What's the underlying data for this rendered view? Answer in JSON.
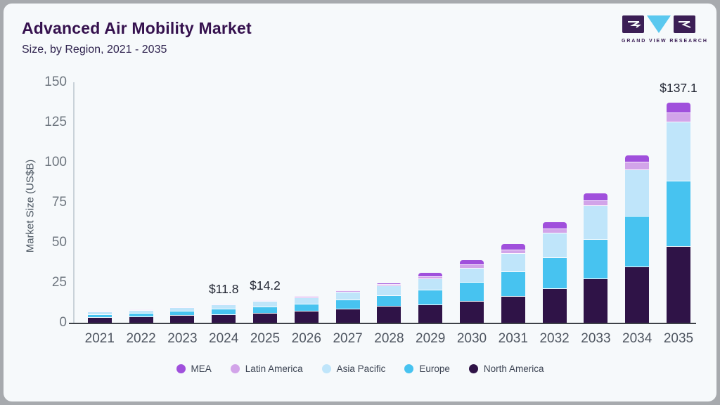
{
  "header": {
    "title": "Advanced Air Mobility Market",
    "subtitle": "Size, by Region, 2021 - 2035"
  },
  "logo": {
    "brand": "GRAND VIEW RESEARCH",
    "brand_dark_color": "#3b1e55",
    "brand_blue_color": "#5ac8ef"
  },
  "chart_data": {
    "type": "bar",
    "stacked": true,
    "title": "Advanced Air Mobility Market",
    "subtitle": "Size, by Region, 2021 - 2035",
    "ylabel": "Market Size (US$B)",
    "ylim": [
      0,
      150
    ],
    "yticks": [
      0,
      25,
      50,
      75,
      100,
      125,
      150
    ],
    "grid": false,
    "legend_position": "bottom",
    "categories": [
      "2021",
      "2022",
      "2023",
      "2024",
      "2025",
      "2026",
      "2027",
      "2028",
      "2029",
      "2030",
      "2031",
      "2032",
      "2033",
      "2034",
      "2035"
    ],
    "series": [
      {
        "name": "North America",
        "color": "#2f1347",
        "values": [
          3.0,
          3.5,
          4.2,
          5.0,
          5.9,
          6.9,
          8.3,
          9.9,
          10.9,
          13.1,
          16.4,
          21.2,
          27.0,
          34.7,
          47.2
        ]
      },
      {
        "name": "Europe",
        "color": "#47c3f0",
        "values": [
          1.9,
          2.2,
          2.7,
          3.2,
          3.9,
          4.6,
          5.6,
          6.9,
          9.5,
          11.7,
          15.3,
          19.1,
          24.7,
          31.7,
          40.8
        ]
      },
      {
        "name": "Asia Pacific",
        "color": "#bfe5fa",
        "values": [
          1.5,
          1.8,
          2.2,
          2.6,
          3.2,
          3.9,
          4.8,
          5.9,
          6.6,
          9.2,
          11.2,
          15.4,
          21.2,
          29.0,
          37.2
        ]
      },
      {
        "name": "Latin America",
        "color": "#d2a4e9",
        "values": [
          0.3,
          0.3,
          0.4,
          0.5,
          0.6,
          0.7,
          0.9,
          1.1,
          1.5,
          1.8,
          2.5,
          2.5,
          3.2,
          4.4,
          5.4
        ]
      },
      {
        "name": "MEA",
        "color": "#a050dc",
        "values": [
          0.3,
          0.4,
          0.4,
          0.5,
          0.6,
          0.7,
          0.8,
          1.0,
          2.7,
          3.3,
          3.7,
          4.4,
          4.6,
          4.7,
          6.5
        ]
      }
    ],
    "legend_order": [
      "MEA",
      "Latin America",
      "Asia Pacific",
      "Europe",
      "North America"
    ],
    "annotations": [
      {
        "category": "2024",
        "text": "$11.8"
      },
      {
        "category": "2025",
        "text": "$14.2"
      },
      {
        "category": "2035",
        "text": "$137.1"
      }
    ]
  }
}
